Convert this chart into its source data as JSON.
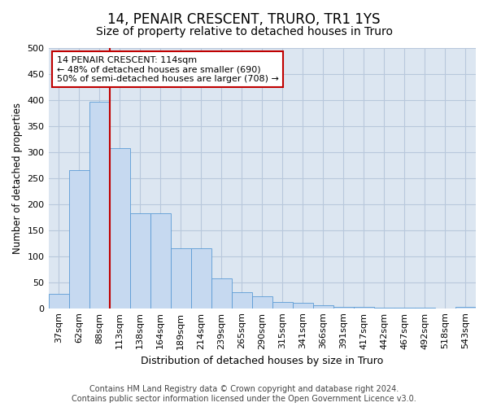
{
  "title": "14, PENAIR CRESCENT, TRURO, TR1 1YS",
  "subtitle": "Size of property relative to detached houses in Truro",
  "xlabel": "Distribution of detached houses by size in Truro",
  "ylabel": "Number of detached properties",
  "categories": [
    "37sqm",
    "62sqm",
    "88sqm",
    "113sqm",
    "138sqm",
    "164sqm",
    "189sqm",
    "214sqm",
    "239sqm",
    "265sqm",
    "290sqm",
    "315sqm",
    "341sqm",
    "366sqm",
    "391sqm",
    "417sqm",
    "442sqm",
    "467sqm",
    "492sqm",
    "518sqm",
    "543sqm"
  ],
  "values": [
    28,
    265,
    397,
    307,
    183,
    183,
    116,
    116,
    58,
    30,
    23,
    12,
    11,
    6,
    3,
    2,
    1,
    1,
    1,
    0,
    3
  ],
  "bar_color": "#c6d9f0",
  "bar_edge_color": "#5b9bd5",
  "vline_x_index": 2,
  "vline_color": "#c00000",
  "annotation_text": "14 PENAIR CRESCENT: 114sqm\n← 48% of detached houses are smaller (690)\n50% of semi-detached houses are larger (708) →",
  "annotation_box_color": "#ffffff",
  "annotation_box_edge_color": "#c00000",
  "ylim": [
    0,
    500
  ],
  "yticks": [
    0,
    50,
    100,
    150,
    200,
    250,
    300,
    350,
    400,
    450,
    500
  ],
  "background_color": "#ffffff",
  "plot_bg_color": "#dce6f1",
  "grid_color": "#b8c8dc",
  "footer_text": "Contains HM Land Registry data © Crown copyright and database right 2024.\nContains public sector information licensed under the Open Government Licence v3.0.",
  "title_fontsize": 12,
  "subtitle_fontsize": 10,
  "xlabel_fontsize": 9,
  "ylabel_fontsize": 8.5,
  "tick_fontsize": 8,
  "footer_fontsize": 7,
  "annotation_fontsize": 8
}
